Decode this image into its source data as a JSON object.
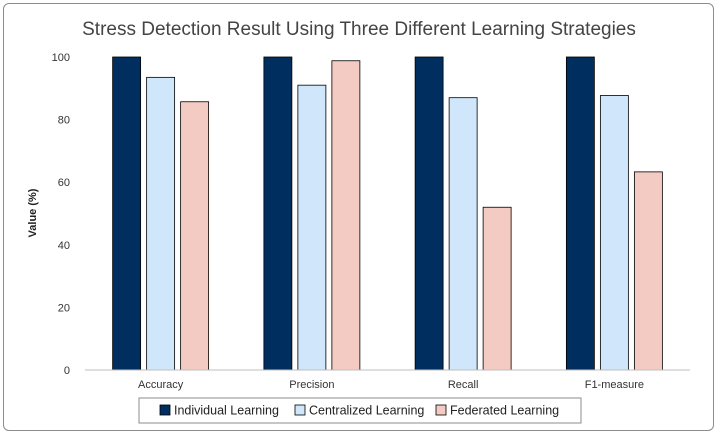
{
  "chart_data": {
    "type": "bar",
    "title": "Stress Detection Result Using Three Different Learning Strategies",
    "xlabel": "",
    "ylabel": "Value (%)",
    "ylim": [
      0,
      100
    ],
    "yticks": [
      0,
      20,
      40,
      60,
      80,
      100
    ],
    "categories": [
      "Accuracy",
      "Precision",
      "Recall",
      "F1-measure"
    ],
    "series": [
      {
        "name": "Individual Learning",
        "color": "#002f5f",
        "values": [
          100,
          100,
          100,
          100
        ]
      },
      {
        "name": "Centralized Learning",
        "color": "#cfe6fb",
        "values": [
          93.5,
          91,
          87,
          87.7
        ]
      },
      {
        "name": "Federated Learning",
        "color": "#f4cbc2",
        "values": [
          85.7,
          98.8,
          52,
          63.3
        ]
      }
    ],
    "grid": false,
    "legend_position": "bottom"
  }
}
